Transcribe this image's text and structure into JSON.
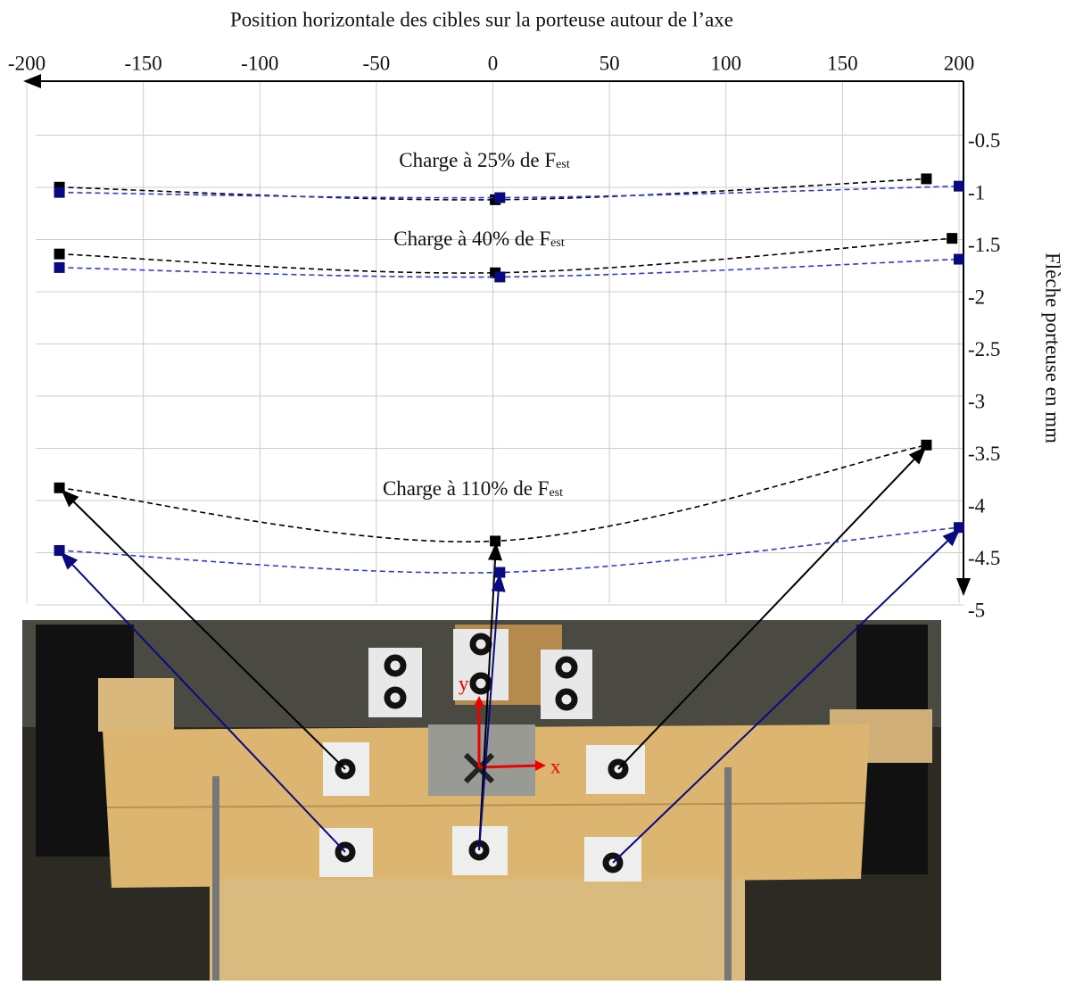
{
  "chart_data": {
    "type": "line",
    "x_label": "Position horizontale des cibles sur la porteuse autour de l’axe",
    "y_label": "Flèche porteuse en mm",
    "xlim": [
      -200,
      200
    ],
    "xticks": [
      -200,
      -150,
      -100,
      -50,
      0,
      50,
      100,
      150,
      200
    ],
    "ylim": [
      -5,
      0
    ],
    "yticks": [
      -0.5,
      -1,
      -1.5,
      -2,
      -2.5,
      -3,
      -3.5,
      -4,
      -4.5,
      -5
    ],
    "grid": true,
    "annotations": [
      {
        "text": "Charge à 25% de F",
        "subscript": "est"
      },
      {
        "text": "Charge à 40% de F",
        "subscript": "est"
      },
      {
        "text": "Charge à 110% de F",
        "subscript": "est"
      }
    ],
    "series": [
      {
        "color": "#000000",
        "line_color": "#000000",
        "x": [
          -186,
          1,
          186
        ],
        "values": [
          -0.93,
          -1.05,
          -0.85
        ]
      },
      {
        "color": "#0a0a80",
        "line_color": "#2b3bd6",
        "x": [
          -186,
          3,
          200
        ],
        "values": [
          -0.98,
          -1.03,
          -0.92
        ]
      },
      {
        "color": "#000000",
        "line_color": "#000000",
        "x": [
          -186,
          1,
          197
        ],
        "values": [
          -1.57,
          -1.75,
          -1.42
        ]
      },
      {
        "color": "#0a0a80",
        "line_color": "#2b3bd6",
        "x": [
          -186,
          3,
          200
        ],
        "values": [
          -1.7,
          -1.79,
          -1.62
        ]
      },
      {
        "color": "#000000",
        "line_color": "#000000",
        "x": [
          -186,
          1,
          186
        ],
        "values": [
          -3.81,
          -4.32,
          -3.4
        ]
      },
      {
        "color": "#0a0a80",
        "line_color": "#2b3bd6",
        "x": [
          -186,
          3,
          200
        ],
        "values": [
          -4.41,
          -4.62,
          -4.19
        ]
      }
    ]
  },
  "photo": {
    "axis_labels": [
      "x",
      "y"
    ]
  }
}
